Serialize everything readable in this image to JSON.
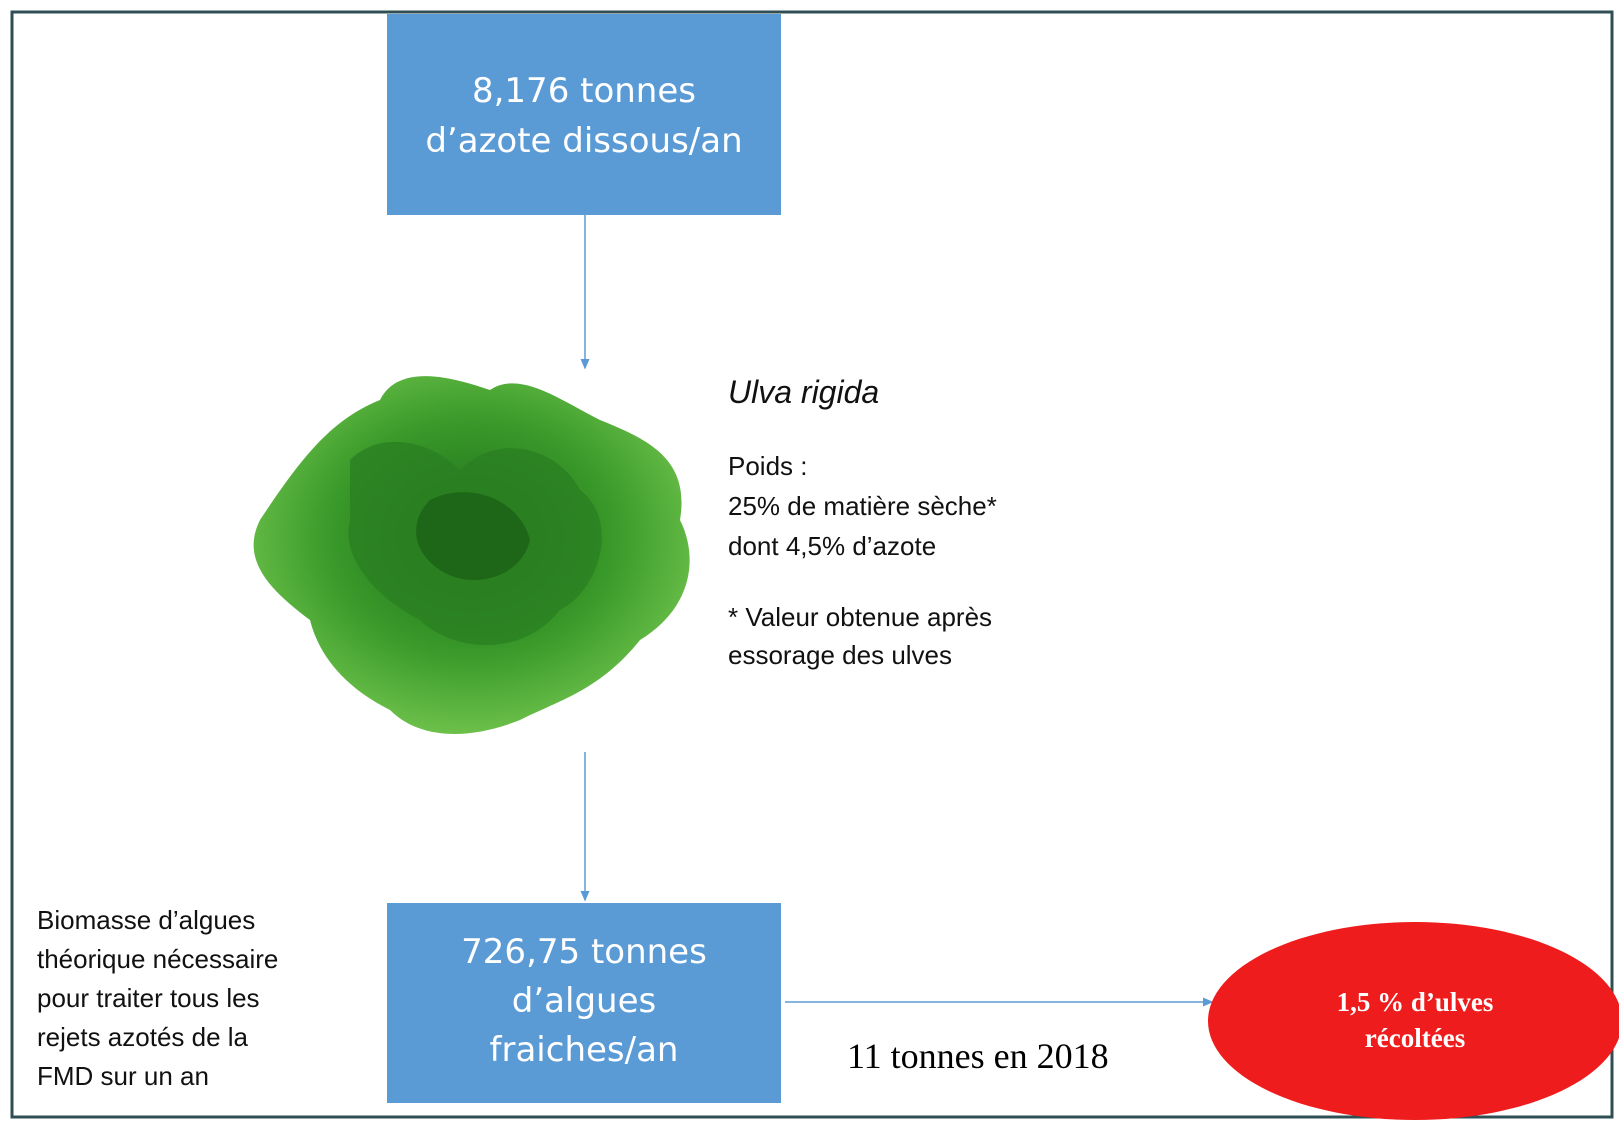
{
  "top_box": {
    "lines": [
      "8,176 tonnes",
      "d’azote dissous/an"
    ]
  },
  "species": {
    "name": "Ulva rigida",
    "lines": [
      "Poids :",
      "25% de matière sèche*",
      "dont 4,5% d’azote"
    ],
    "note": [
      "* Valeur obtenue après",
      "essorage des ulves"
    ]
  },
  "left_text": {
    "lines": [
      "Biomasse d’algues",
      "théorique nécessaire",
      "pour traiter tous les",
      "rejets azotés de la",
      "FMD sur un an"
    ]
  },
  "bottom_box": {
    "lines": [
      "726,75 tonnes",
      "d’algues",
      "fraiches/an"
    ]
  },
  "harvest_note": "11 tonnes en 2018",
  "result": {
    "lines": [
      "1,5 % d’ulves",
      "récoltées"
    ]
  }
}
